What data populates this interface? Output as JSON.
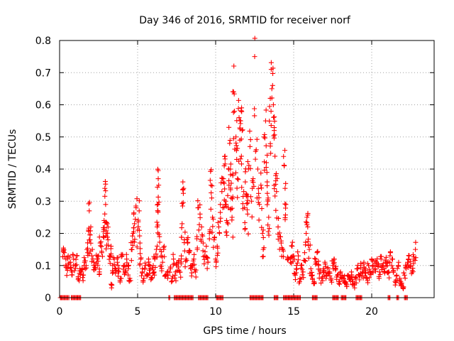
{
  "chart_data": {
    "type": "scatter",
    "title": "Day 346 of 2016, SRMTID for receiver norf",
    "xlabel": "GPS time / hours",
    "ylabel": "SRMTID / TECUs",
    "xlim": [
      0,
      24
    ],
    "ylim": [
      0,
      0.8
    ],
    "x_ticks": [
      0,
      5,
      10,
      15,
      20
    ],
    "x_tick_labels": [
      "0",
      "5",
      "10",
      "15",
      "20"
    ],
    "y_ticks": [
      0,
      0.1,
      0.2,
      0.3,
      0.4,
      0.5,
      0.6,
      0.7,
      0.8
    ],
    "y_tick_labels": [
      "0",
      "0.1",
      "0.2",
      "0.3",
      "0.4",
      "0.5",
      "0.6",
      "0.7",
      "0.8"
    ],
    "grid": true,
    "marker": "plus",
    "color": "#ff0000",
    "series": [
      {
        "name": "SRMTID",
        "points": [
          [
            0.1,
            0.0
          ],
          [
            0.25,
            0.15
          ],
          [
            0.3,
            0.14
          ],
          [
            0.4,
            0.12
          ],
          [
            0.5,
            0.09
          ],
          [
            0.55,
            0.13
          ],
          [
            0.6,
            0.0
          ],
          [
            0.7,
            0.11
          ],
          [
            0.8,
            0.08
          ],
          [
            0.9,
            0.12
          ],
          [
            1.0,
            0.1
          ],
          [
            1.1,
            0.13
          ],
          [
            1.15,
            0.0
          ],
          [
            1.2,
            0.06
          ],
          [
            1.3,
            0.09
          ],
          [
            1.4,
            0.08
          ],
          [
            1.5,
            0.07
          ],
          [
            1.6,
            0.11
          ],
          [
            1.7,
            0.1
          ],
          [
            1.8,
            0.14
          ],
          [
            1.85,
            0.21
          ],
          [
            1.9,
            0.27
          ],
          [
            1.95,
            0.18
          ],
          [
            2.0,
            0.22
          ],
          [
            2.1,
            0.15
          ],
          [
            2.2,
            0.11
          ],
          [
            2.3,
            0.09
          ],
          [
            2.4,
            0.12
          ],
          [
            2.5,
            0.13
          ],
          [
            2.55,
            0.08
          ],
          [
            2.6,
            0.17
          ],
          [
            2.7,
            0.14
          ],
          [
            2.8,
            0.19
          ],
          [
            2.85,
            0.24
          ],
          [
            2.9,
            0.34
          ],
          [
            2.95,
            0.29
          ],
          [
            3.0,
            0.2
          ],
          [
            3.05,
            0.23
          ],
          [
            3.1,
            0.18
          ],
          [
            3.2,
            0.13
          ],
          [
            3.3,
            0.16
          ],
          [
            3.35,
            0.04
          ],
          [
            3.4,
            0.1
          ],
          [
            3.5,
            0.12
          ],
          [
            3.6,
            0.09
          ],
          [
            3.7,
            0.11
          ],
          [
            3.8,
            0.08
          ],
          [
            3.9,
            0.06
          ],
          [
            4.0,
            0.13
          ],
          [
            4.1,
            0.1
          ],
          [
            4.2,
            0.08
          ],
          [
            4.3,
            0.12
          ],
          [
            4.4,
            0.09
          ],
          [
            4.5,
            0.06
          ],
          [
            4.6,
            0.15
          ],
          [
            4.7,
            0.2
          ],
          [
            4.75,
            0.26
          ],
          [
            4.8,
            0.23
          ],
          [
            4.9,
            0.28
          ],
          [
            5.0,
            0.21
          ],
          [
            5.1,
            0.27
          ],
          [
            5.15,
            0.17
          ],
          [
            5.2,
            0.12
          ],
          [
            5.3,
            0.08
          ],
          [
            5.4,
            0.06
          ],
          [
            5.5,
            0.1
          ],
          [
            5.6,
            0.07
          ],
          [
            5.7,
            0.12
          ],
          [
            5.8,
            0.09
          ],
          [
            5.9,
            0.06
          ],
          [
            6.0,
            0.1
          ],
          [
            6.05,
            0.08
          ],
          [
            6.1,
            0.12
          ],
          [
            6.2,
            0.15
          ],
          [
            6.25,
            0.22
          ],
          [
            6.3,
            0.27
          ],
          [
            6.32,
            0.37
          ],
          [
            6.35,
            0.35
          ],
          [
            6.4,
            0.19
          ],
          [
            6.5,
            0.13
          ],
          [
            6.6,
            0.11
          ],
          [
            6.7,
            0.16
          ],
          [
            6.8,
            0.07
          ],
          [
            6.9,
            0.08
          ],
          [
            7.0,
            0.0
          ],
          [
            7.1,
            0.09
          ],
          [
            7.2,
            0.06
          ],
          [
            7.3,
            0.12
          ],
          [
            7.4,
            0.07
          ],
          [
            7.5,
            0.1
          ],
          [
            7.6,
            0.11
          ],
          [
            7.7,
            0.08
          ],
          [
            7.8,
            0.13
          ],
          [
            7.85,
            0.23
          ],
          [
            7.9,
            0.36
          ],
          [
            7.95,
            0.34
          ],
          [
            8.0,
            0.18
          ],
          [
            8.1,
            0.12
          ],
          [
            8.2,
            0.17
          ],
          [
            8.3,
            0.14
          ],
          [
            8.4,
            0.09
          ],
          [
            8.5,
            0.1
          ],
          [
            8.6,
            0.12
          ],
          [
            8.7,
            0.08
          ],
          [
            8.8,
            0.19
          ],
          [
            8.9,
            0.28
          ],
          [
            9.0,
            0.26
          ],
          [
            9.1,
            0.22
          ],
          [
            9.2,
            0.17
          ],
          [
            9.3,
            0.13
          ],
          [
            9.4,
            0.16
          ],
          [
            9.5,
            0.11
          ],
          [
            9.6,
            0.2
          ],
          [
            9.7,
            0.35
          ],
          [
            9.75,
            0.31
          ],
          [
            9.8,
            0.25
          ],
          [
            9.9,
            0.18
          ],
          [
            10.0,
            0.12
          ],
          [
            10.1,
            0.16
          ],
          [
            10.2,
            0.22
          ],
          [
            10.3,
            0.29
          ],
          [
            10.4,
            0.33
          ],
          [
            10.5,
            0.37
          ],
          [
            10.55,
            0.41
          ],
          [
            10.6,
            0.44
          ],
          [
            10.65,
            0.3
          ],
          [
            10.7,
            0.24
          ],
          [
            10.8,
            0.28
          ],
          [
            10.85,
            0.35
          ],
          [
            10.9,
            0.48
          ],
          [
            10.95,
            0.4
          ],
          [
            11.0,
            0.31
          ],
          [
            11.05,
            0.25
          ],
          [
            11.1,
            0.38
          ],
          [
            11.15,
            0.64
          ],
          [
            11.2,
            0.58
          ],
          [
            11.3,
            0.5
          ],
          [
            11.35,
            0.43
          ],
          [
            11.4,
            0.37
          ],
          [
            11.5,
            0.56
          ],
          [
            11.55,
            0.49
          ],
          [
            11.6,
            0.55
          ],
          [
            11.65,
            0.44
          ],
          [
            11.7,
            0.52
          ],
          [
            11.8,
            0.33
          ],
          [
            11.85,
            0.28
          ],
          [
            11.9,
            0.36
          ],
          [
            12.0,
            0.32
          ],
          [
            12.05,
            0.26
          ],
          [
            12.1,
            0.4
          ],
          [
            12.2,
            0.47
          ],
          [
            12.3,
            0.3
          ],
          [
            12.4,
            0.37
          ],
          [
            12.5,
            0.75
          ],
          [
            12.6,
            0.46
          ],
          [
            12.7,
            0.4
          ],
          [
            12.8,
            0.29
          ],
          [
            12.9,
            0.35
          ],
          [
            13.0,
            0.2
          ],
          [
            13.05,
            0.15
          ],
          [
            13.1,
            0.5
          ],
          [
            13.2,
            0.55
          ],
          [
            13.25,
            0.42
          ],
          [
            13.3,
            0.36
          ],
          [
            13.35,
            0.3
          ],
          [
            13.4,
            0.25
          ],
          [
            13.5,
            0.62
          ],
          [
            13.55,
            0.58
          ],
          [
            13.6,
            0.65
          ],
          [
            13.65,
            0.66
          ],
          [
            13.7,
            0.6
          ],
          [
            13.75,
            0.52
          ],
          [
            13.8,
            0.44
          ],
          [
            13.85,
            0.38
          ],
          [
            13.9,
            0.33
          ],
          [
            14.0,
            0.22
          ],
          [
            14.1,
            0.19
          ],
          [
            14.2,
            0.17
          ],
          [
            14.3,
            0.15
          ],
          [
            14.4,
            0.41
          ],
          [
            14.45,
            0.34
          ],
          [
            14.5,
            0.29
          ],
          [
            14.6,
            0.12
          ],
          [
            14.7,
            0.0
          ],
          [
            14.8,
            0.11
          ],
          [
            14.9,
            0.16
          ],
          [
            15.0,
            0.13
          ],
          [
            15.1,
            0.07
          ],
          [
            15.2,
            0.09
          ],
          [
            15.3,
            0.13
          ],
          [
            15.4,
            0.06
          ],
          [
            15.5,
            0.1
          ],
          [
            15.6,
            0.08
          ],
          [
            15.7,
            0.14
          ],
          [
            15.8,
            0.2
          ],
          [
            15.85,
            0.25
          ],
          [
            15.9,
            0.22
          ],
          [
            16.0,
            0.15
          ],
          [
            16.1,
            0.09
          ],
          [
            16.2,
            0.07
          ],
          [
            16.3,
            0.05
          ],
          [
            16.4,
            0.12
          ],
          [
            16.5,
            0.14
          ],
          [
            16.6,
            0.1
          ],
          [
            16.7,
            0.08
          ],
          [
            16.8,
            0.06
          ],
          [
            16.9,
            0.09
          ],
          [
            17.0,
            0.11
          ],
          [
            17.1,
            0.07
          ],
          [
            17.2,
            0.09
          ],
          [
            17.3,
            0.08
          ],
          [
            17.4,
            0.06
          ],
          [
            17.5,
            0.1
          ],
          [
            17.6,
            0.12
          ],
          [
            17.7,
            0.09
          ],
          [
            17.8,
            0.07
          ],
          [
            17.9,
            0.05
          ],
          [
            18.0,
            0.08
          ],
          [
            18.1,
            0.07
          ],
          [
            18.2,
            0.06
          ],
          [
            18.3,
            0.05
          ],
          [
            18.4,
            0.04
          ],
          [
            18.5,
            0.07
          ],
          [
            18.6,
            0.06
          ],
          [
            18.7,
            0.08
          ],
          [
            18.8,
            0.05
          ],
          [
            18.9,
            0.04
          ],
          [
            19.0,
            0.06
          ],
          [
            19.1,
            0.09
          ],
          [
            19.2,
            0.07
          ],
          [
            19.3,
            0.1
          ],
          [
            19.4,
            0.08
          ],
          [
            19.5,
            0.11
          ],
          [
            19.6,
            0.09
          ],
          [
            19.7,
            0.06
          ],
          [
            19.8,
            0.1
          ],
          [
            19.9,
            0.08
          ],
          [
            20.0,
            0.12
          ],
          [
            20.1,
            0.1
          ],
          [
            20.2,
            0.09
          ],
          [
            20.3,
            0.11
          ],
          [
            20.4,
            0.1
          ],
          [
            20.5,
            0.08
          ],
          [
            20.6,
            0.12
          ],
          [
            20.7,
            0.1
          ],
          [
            20.8,
            0.09
          ],
          [
            20.9,
            0.11
          ],
          [
            21.0,
            0.1
          ],
          [
            21.1,
            0.08
          ],
          [
            21.2,
            0.14
          ],
          [
            21.3,
            0.12
          ],
          [
            21.4,
            0.08
          ],
          [
            21.5,
            0.05
          ],
          [
            21.6,
            0.07
          ],
          [
            21.7,
            0.1
          ],
          [
            21.8,
            0.06
          ],
          [
            21.9,
            0.04
          ],
          [
            22.0,
            0.03
          ],
          [
            22.1,
            0.07
          ],
          [
            22.2,
            0.09
          ],
          [
            22.3,
            0.11
          ],
          [
            22.4,
            0.13
          ],
          [
            22.5,
            0.1
          ],
          [
            22.6,
            0.08
          ],
          [
            22.7,
            0.12
          ],
          [
            22.8,
            0.15
          ]
        ]
      }
    ],
    "zero_clusters": [
      [
        0.05,
        0.55
      ],
      [
        0.75,
        1.4
      ],
      [
        7.0,
        7.1
      ],
      [
        7.35,
        8.6
      ],
      [
        8.9,
        9.5
      ],
      [
        10.05,
        10.5
      ],
      [
        12.2,
        13.05
      ],
      [
        13.75,
        14.0
      ],
      [
        14.35,
        15.45
      ],
      [
        16.2,
        16.5
      ],
      [
        17.5,
        17.9
      ],
      [
        18.05,
        18.4
      ],
      [
        19.0,
        19.4
      ],
      [
        21.05,
        21.2
      ],
      [
        21.6,
        21.75
      ],
      [
        22.1,
        22.3
      ]
    ]
  }
}
